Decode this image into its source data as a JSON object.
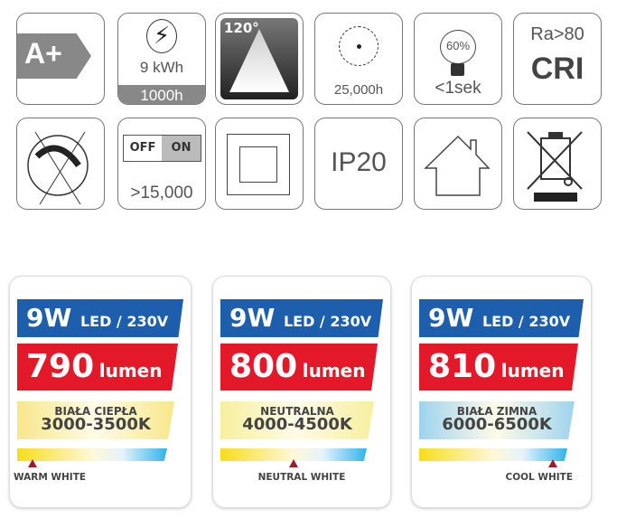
{
  "icons_row1": {
    "energy_class": "A+",
    "consumption": "9 kWh",
    "consumption_per": "1000h",
    "beam_angle": "120°",
    "lifetime": "25,000h",
    "warmup_percent": "60%",
    "warmup_time": "<1sek",
    "cri_ra": "Ra>80",
    "cri_label": "CRI"
  },
  "icons_row2": {
    "dimmable": "not-dimmable-icon",
    "switch_off": "OFF",
    "switch_on": "ON",
    "switch_cycles": ">15,000",
    "protection_class": "class-ii-icon",
    "ip_rating": "IP20",
    "indoor": "house-icon",
    "weee": "crossed-bin-icon"
  },
  "cards": [
    {
      "power": "9W",
      "type": "LED / 230V",
      "lumen_value": "790",
      "lumen_unit": "lumen",
      "cct_name": "BIAŁA CIEPŁA",
      "cct_range": "3000-3500K",
      "marker_label": "WARM WHITE",
      "marker_pos": 0.1,
      "cct_color": "#f7e78a"
    },
    {
      "power": "9W",
      "type": "LED / 230V",
      "lumen_value": "800",
      "lumen_unit": "lumen",
      "cct_name": "NEUTRALNA",
      "cct_range": "4000-4500K",
      "marker_label": "NEUTRAL WHITE",
      "marker_pos": 0.5,
      "cct_color": "#f7ef9e"
    },
    {
      "power": "9W",
      "type": "LED / 230V",
      "lumen_value": "810",
      "lumen_unit": "lumen",
      "cct_name": "BIAŁA ZIMNA",
      "cct_range": "6000-6500K",
      "marker_label": "COOL WHITE",
      "marker_pos": 0.9,
      "cct_color": "#9fd3ef"
    }
  ],
  "colors": {
    "blue": "#1d5fad",
    "red": "#e3192a",
    "marker": "#a01c24"
  }
}
